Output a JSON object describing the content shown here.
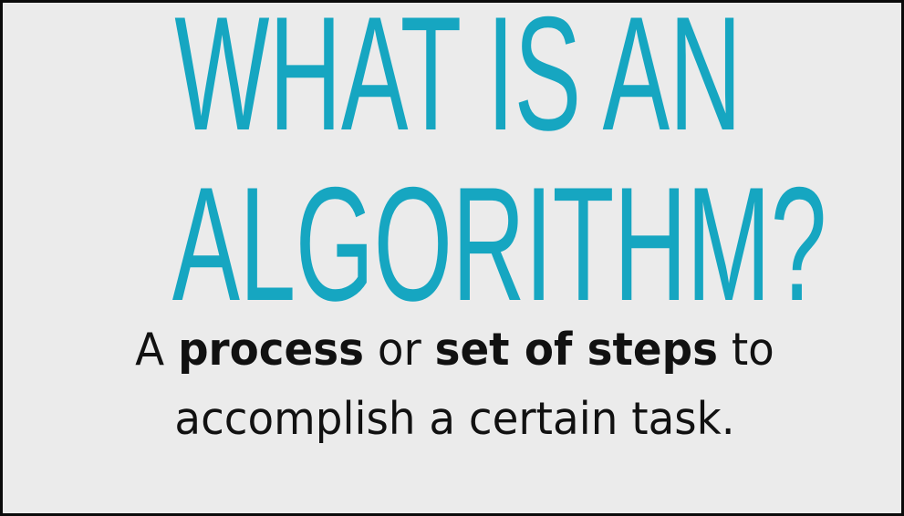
{
  "slide": {
    "headline_line1": "WHAT IS AN",
    "headline_line2": "ALGORITHM?",
    "definition": {
      "line1": {
        "part1": "A ",
        "part2": "process",
        "part3": " or ",
        "part4": "set of steps",
        "part5": " to"
      },
      "line2": "accomplish a certain task."
    }
  },
  "colors": {
    "headline": "#16a6c1",
    "body_text": "#111111",
    "background": "#ebebeb",
    "frame_border": "#0b0b0b"
  }
}
